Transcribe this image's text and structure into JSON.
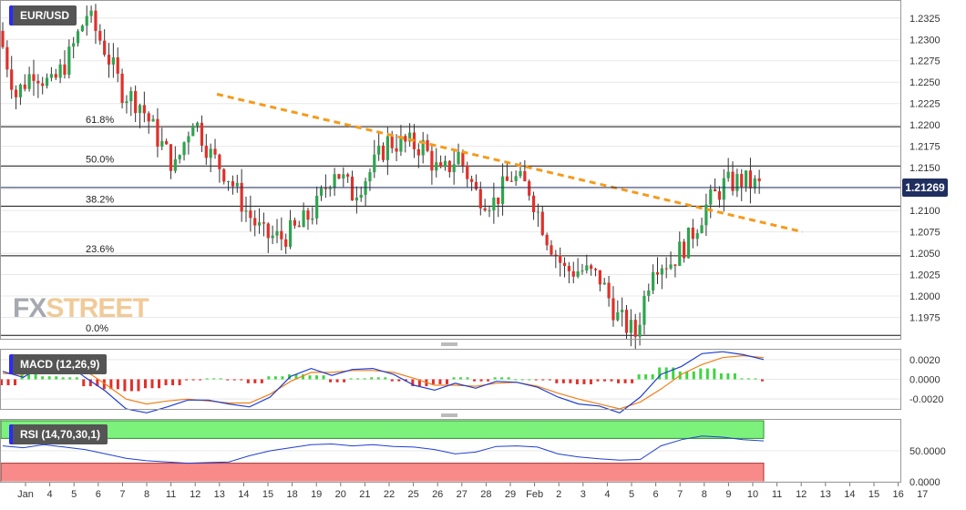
{
  "chart_data": [
    {
      "type": "candlestick",
      "title": "EUR/USD",
      "ylim": [
        1.195,
        1.2345
      ],
      "y_ticks": [
        "1.2325",
        "1.2300",
        "1.2275",
        "1.2250",
        "1.2225",
        "1.2200",
        "1.2175",
        "1.2150",
        "1.2125",
        "1.2100",
        "1.2075",
        "1.2050",
        "1.2025",
        "1.2000",
        "1.1975"
      ],
      "current_price": "1.21269",
      "current_value": 1.21269,
      "fibonacci_levels": [
        {
          "label": "61.8%",
          "value": 1.2198
        },
        {
          "label": "50.0%",
          "value": 1.2152
        },
        {
          "label": "38.2%",
          "value": 1.2105
        },
        {
          "label": "23.6%",
          "value": 1.2047
        },
        {
          "label": "0.0%",
          "value": 1.1954
        }
      ],
      "trendline": {
        "style": "dashed",
        "color": "#f59a1b",
        "start": {
          "x": 12.1,
          "y": 1.2236
        },
        "end": {
          "x": 45.2,
          "y": 1.2075
        }
      },
      "close_path": [
        [
          0,
          1.231
        ],
        [
          1,
          1.2235
        ],
        [
          2,
          1.2265
        ],
        [
          3,
          1.2245
        ],
        [
          4,
          1.228
        ],
        [
          5,
          1.233
        ],
        [
          6,
          1.229
        ],
        [
          7,
          1.224
        ],
        [
          8,
          1.2225
        ],
        [
          9,
          1.2185
        ],
        [
          10,
          1.215
        ],
        [
          11,
          1.221
        ],
        [
          12,
          1.2165
        ],
        [
          13,
          1.214
        ],
        [
          14,
          1.21
        ],
        [
          15,
          1.207
        ],
        [
          16,
          1.2068
        ],
        [
          17,
          1.208
        ],
        [
          18,
          1.2105
        ],
        [
          19,
          1.215
        ],
        [
          20,
          1.212
        ],
        [
          21,
          1.2145
        ],
        [
          22,
          1.218
        ],
        [
          23,
          1.2178
        ],
        [
          24,
          1.2175
        ],
        [
          25,
          1.214
        ],
        [
          26,
          1.2165
        ],
        [
          27,
          1.212
        ],
        [
          28,
          1.211
        ],
        [
          29,
          1.214
        ],
        [
          30,
          1.2125
        ],
        [
          31,
          1.207
        ],
        [
          32,
          1.203
        ],
        [
          33,
          1.203
        ],
        [
          34,
          1.202
        ],
        [
          35,
          1.1975
        ],
        [
          36,
          1.1955
        ],
        [
          37,
          1.204
        ],
        [
          38,
          1.204
        ],
        [
          39,
          1.2065
        ],
        [
          40,
          1.2105
        ],
        [
          41,
          1.213
        ],
        [
          42,
          1.2135
        ],
        [
          43,
          1.2128
        ]
      ],
      "x_ticks": [
        "Jan",
        "4",
        "5",
        "6",
        "7",
        "8",
        "11",
        "12",
        "13",
        "14",
        "15",
        "18",
        "19",
        "20",
        "21",
        "22",
        "25",
        "26",
        "27",
        "28",
        "29",
        "Feb",
        "2",
        "3",
        "4",
        "5",
        "6",
        "7",
        "8",
        "9",
        "10",
        "11",
        "12",
        "13",
        "14",
        "15",
        "16",
        "17"
      ]
    },
    {
      "type": "line",
      "title": "MACD (12,26,9)",
      "y_ticks": [
        "0.0020",
        "0.0000",
        "-0.0020"
      ],
      "ylim": [
        -0.003,
        0.003
      ],
      "series": [
        {
          "role": "macd",
          "color": "#1f3fd0",
          "values": [
            0.0008,
            0.0002,
            0.0015,
            0.0018,
            0.0002,
            -0.0012,
            -0.003,
            -0.0034,
            -0.0028,
            -0.0021,
            -0.0021,
            -0.0025,
            -0.0028,
            -0.0018,
            0.0003,
            0.0011,
            0.0004,
            0.001,
            0.0011,
            0.0005,
            -0.0006,
            -0.0011,
            -0.0004,
            -0.0009,
            -0.0002,
            -0.0003,
            -0.0008,
            -0.0018,
            -0.0025,
            -0.0027,
            -0.0034,
            -0.0018,
            0.0005,
            0.0013,
            0.0026,
            0.0028,
            0.0025,
            0.002
          ]
        },
        {
          "role": "signal",
          "color": "#f07f1a",
          "values": [
            0.0006,
            0.0005,
            0.0012,
            0.0016,
            0.0009,
            -0.0005,
            -0.002,
            -0.0025,
            -0.0022,
            -0.002,
            -0.0022,
            -0.0024,
            -0.0024,
            -0.0015,
            -0.0002,
            0.0007,
            0.0007,
            0.0009,
            0.0009,
            0.0007,
            0.0001,
            -0.0006,
            -0.0006,
            -0.0007,
            -0.0004,
            -0.0003,
            -0.0007,
            -0.0014,
            -0.002,
            -0.0025,
            -0.003,
            -0.0023,
            -0.001,
            0.0005,
            0.0015,
            0.0022,
            0.0024,
            0.0022
          ]
        }
      ],
      "histogram": [
        -0.0006,
        0.0009,
        0.0003,
        0.0002,
        -0.0007,
        -0.001,
        -0.0012,
        -0.0009,
        -0.0006,
        -0.0001,
        0.0001,
        -0.0001,
        -0.0004,
        0.0003,
        0.0005,
        0.0004,
        -0.0003,
        0.0001,
        0.0002,
        -0.0002,
        -0.0007,
        -0.0005,
        0.0002,
        -0.0002,
        0.0002,
        0,
        -0.0001,
        -0.0004,
        -0.0005,
        -0.0002,
        -0.0004,
        0.0005,
        0.0012,
        0.0008,
        0.0011,
        0.0006,
        0.0001,
        -0.0002
      ]
    },
    {
      "type": "line",
      "title": "RSI (14,70,30,1)",
      "y_ticks": [
        "50.0000",
        "0.0000"
      ],
      "ylim": [
        0,
        100
      ],
      "overbought": 70,
      "oversold": 30,
      "series": [
        {
          "role": "rsi",
          "color": "#1f3fd0",
          "values": [
            58,
            55,
            60,
            56,
            52,
            45,
            38,
            34,
            32,
            30,
            31,
            32,
            42,
            50,
            55,
            60,
            61,
            58,
            60,
            57,
            56,
            52,
            45,
            48,
            57,
            58,
            56,
            45,
            40,
            37,
            35,
            36,
            58,
            68,
            74,
            72,
            68,
            66
          ]
        }
      ]
    }
  ]
}
